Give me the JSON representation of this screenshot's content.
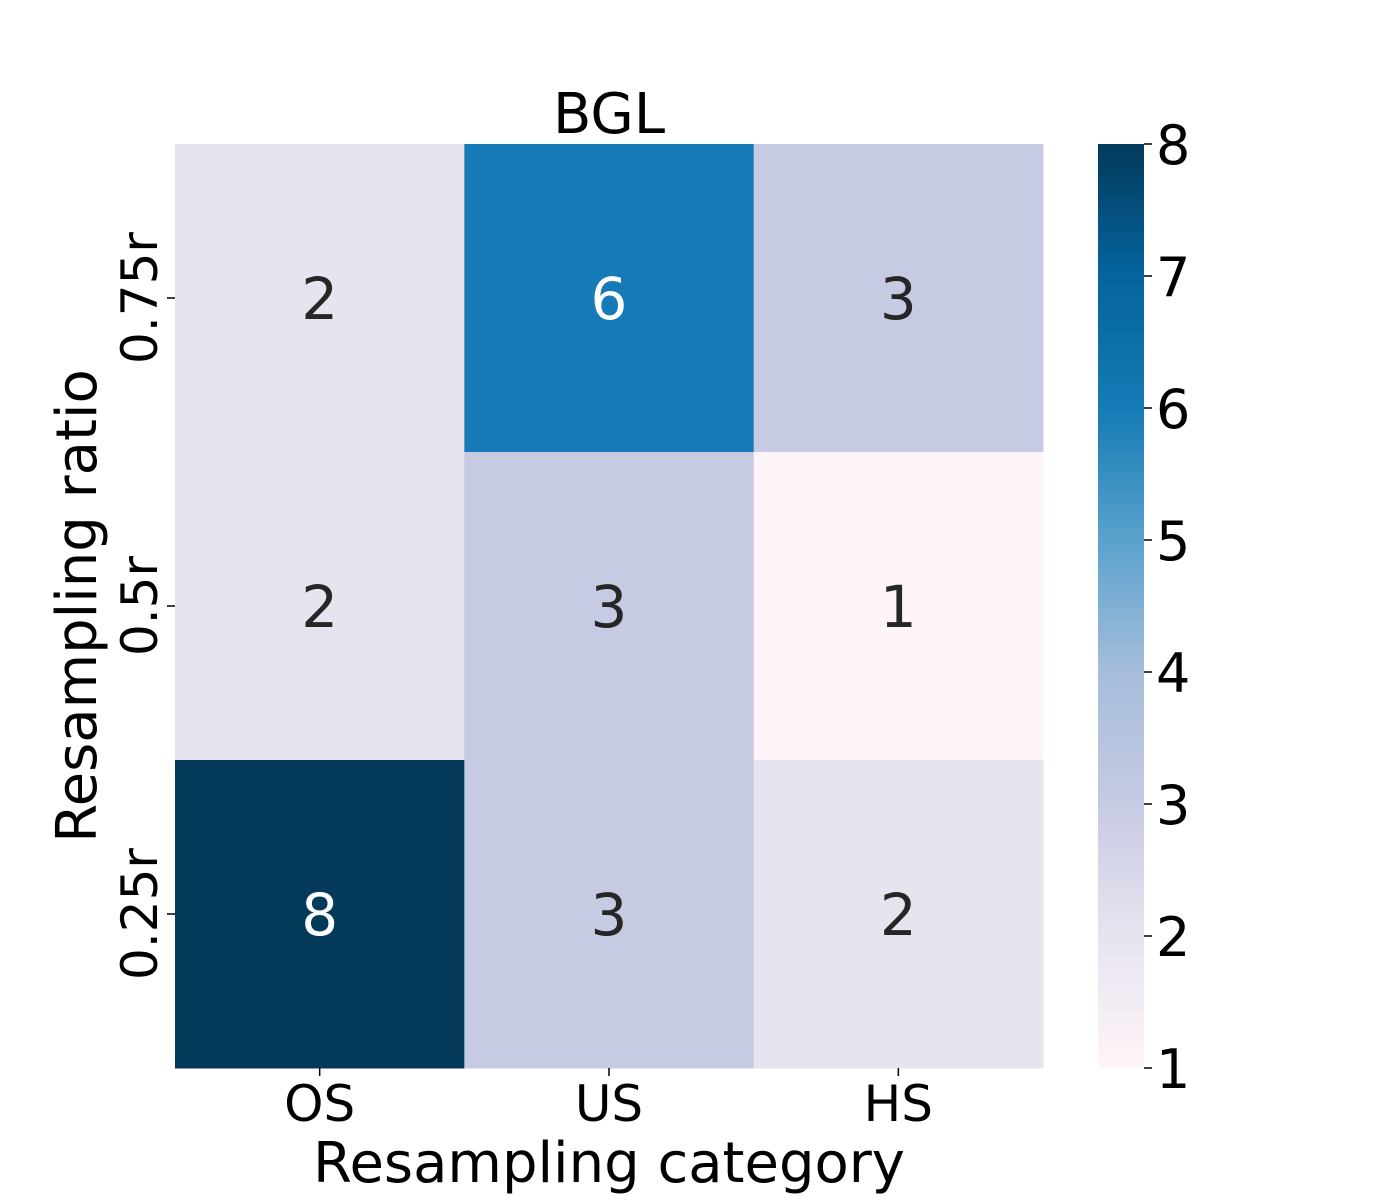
{
  "chart_data": {
    "type": "heatmap",
    "title": "BGL",
    "xlabel": "Resampling category",
    "ylabel": "Resampling ratio",
    "x_categories": [
      "OS",
      "US",
      "HS"
    ],
    "y_categories": [
      "0.75r",
      "0.5r",
      "0.25r"
    ],
    "values": [
      [
        2,
        6,
        3
      ],
      [
        2,
        3,
        1
      ],
      [
        8,
        3,
        2
      ]
    ],
    "colorbar": {
      "min": 1,
      "max": 8,
      "ticks": [
        "1",
        "2",
        "3",
        "4",
        "5",
        "6",
        "7",
        "8"
      ]
    },
    "colormap": "PuBu",
    "colors": {
      "v1": "#fff4f9",
      "v2": "#e7e4f0",
      "v3": "#c6cae3",
      "v6": "#157ab5",
      "v8": "#033a5a",
      "dark_text": "#262626",
      "light_text": "#ffffff"
    }
  }
}
